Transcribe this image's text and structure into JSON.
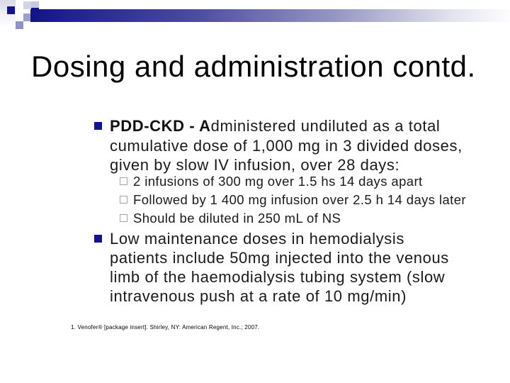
{
  "slide": {
    "title": "Dosing and administration contd.",
    "colors": {
      "accent_navy": "#14148a",
      "body_text": "#1a1a1a",
      "sub_bullet_outline": "#a4a4b0",
      "decoration_lavender": "#9191c3"
    },
    "bullet1": {
      "line1_bold": "PDD-CKD - A",
      "line1_rest": "dministered undiluted as a total",
      "line2": "cumulative dose of 1,000 mg in 3 divided doses,",
      "line3": "given by slow IV infusion, over 28 days:"
    },
    "sub_bullets": [
      "2 infusions of 300 mg over 1.5 hs 14 days apart",
      "Followed by 1 400 mg infusion over 2.5 h 14 days later",
      "Should be diluted in 250 mL of NS"
    ],
    "bullet2": {
      "line1": "Low maintenance doses in hemodialysis",
      "line2": "patients include 50mg injected into the venous",
      "line3": "limb of the haemodialysis tubing system (slow",
      "line4": "intravenous push at a rate of 10 mg/min)"
    },
    "footnote": "1. Venofer® [package insert]. Shirley, NY: American Regent, Inc.; 2007."
  }
}
